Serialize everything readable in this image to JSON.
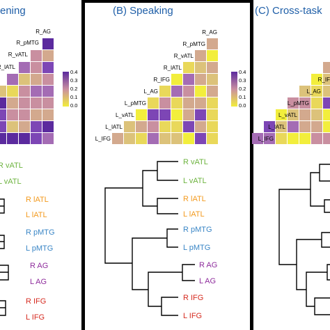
{
  "panels": [
    {
      "id": "A",
      "title": "(A) Listening",
      "title_visible": "ening"
    },
    {
      "id": "B",
      "title": "(B) Speaking",
      "title_visible": "(B) Speaking"
    },
    {
      "id": "C",
      "title": "(C) Cross-task",
      "title_visible": "(C) Cross-task"
    }
  ],
  "matrix_labels_A": [
    "R_AG",
    "R_pMTG",
    "R_vATL",
    "R_lATL"
  ],
  "matrix_labels_B": [
    "R_AG",
    "R_pMTG",
    "R_vATL",
    "R_lATL",
    "R_IFG",
    "L_AG",
    "L_pMTG",
    "L_vATL",
    "L_lATL",
    "L_IFG"
  ],
  "matrix_labels_C": [
    "R_IF",
    "L_AG",
    "L_pMTG",
    "L_vATL",
    "L_lATL",
    "L_IFG"
  ],
  "colorbar": {
    "ticks": [
      "0.4",
      "0.3",
      "0.2",
      "0.1",
      "0.0"
    ],
    "colors": {
      "high": "#5b2a9e",
      "mid": "#c98fa0",
      "low": "#f2ee3c"
    }
  },
  "leaves": [
    {
      "text": "R vATL",
      "color": "#6db33f"
    },
    {
      "text": "L vATL",
      "color": "#6db33f"
    },
    {
      "text": "R lATL",
      "color": "#f39a1e"
    },
    {
      "text": "L lATL",
      "color": "#f39a1e"
    },
    {
      "text": "R pMTG",
      "color": "#3a86c6"
    },
    {
      "text": "L pMTG",
      "color": "#3a86c6"
    },
    {
      "text": "R AG",
      "color": "#8e2c9c"
    },
    {
      "text": "L AG",
      "color": "#8e2c9c"
    },
    {
      "text": "R IFG",
      "color": "#d62b20"
    },
    {
      "text": "L IFG",
      "color": "#d62b20"
    }
  ]
}
